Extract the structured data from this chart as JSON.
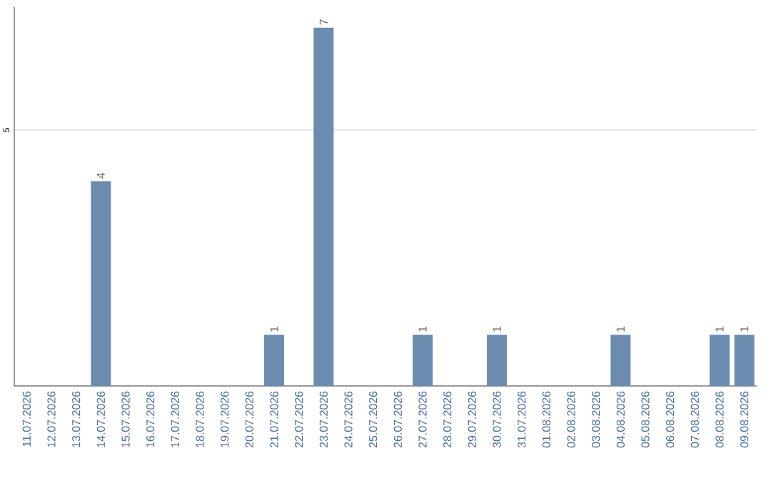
{
  "chart_data": {
    "type": "bar",
    "categories": [
      "11.07.2026",
      "12.07.2026",
      "13.07.2026",
      "14.07.2026",
      "15.07.2026",
      "16.07.2026",
      "17.07.2026",
      "18.07.2026",
      "19.07.2026",
      "20.07.2026",
      "21.07.2026",
      "22.07.2026",
      "23.07.2026",
      "24.07.2026",
      "25.07.2026",
      "26.07.2026",
      "27.07.2026",
      "28.07.2026",
      "29.07.2026",
      "30.07.2026",
      "31.07.2026",
      "01.08.2026",
      "02.08.2026",
      "03.08.2026",
      "04.08.2026",
      "05.08.2026",
      "06.08.2026",
      "07.08.2026",
      "08.08.2026",
      "09.08.2026"
    ],
    "values": [
      0,
      0,
      0,
      4,
      0,
      0,
      0,
      0,
      0,
      0,
      1,
      0,
      7,
      0,
      0,
      0,
      1,
      0,
      0,
      1,
      0,
      0,
      0,
      0,
      1,
      0,
      0,
      0,
      1,
      1
    ],
    "value_labels": [
      null,
      null,
      null,
      "4",
      null,
      null,
      null,
      null,
      null,
      null,
      "1",
      null,
      "7",
      null,
      null,
      null,
      "1",
      null,
      null,
      "1",
      null,
      null,
      null,
      null,
      "1",
      null,
      null,
      null,
      "1",
      "1"
    ],
    "color": "#6b8cae",
    "ylim": [
      0,
      7.4
    ],
    "yticks": [
      5
    ],
    "grid": "y"
  }
}
